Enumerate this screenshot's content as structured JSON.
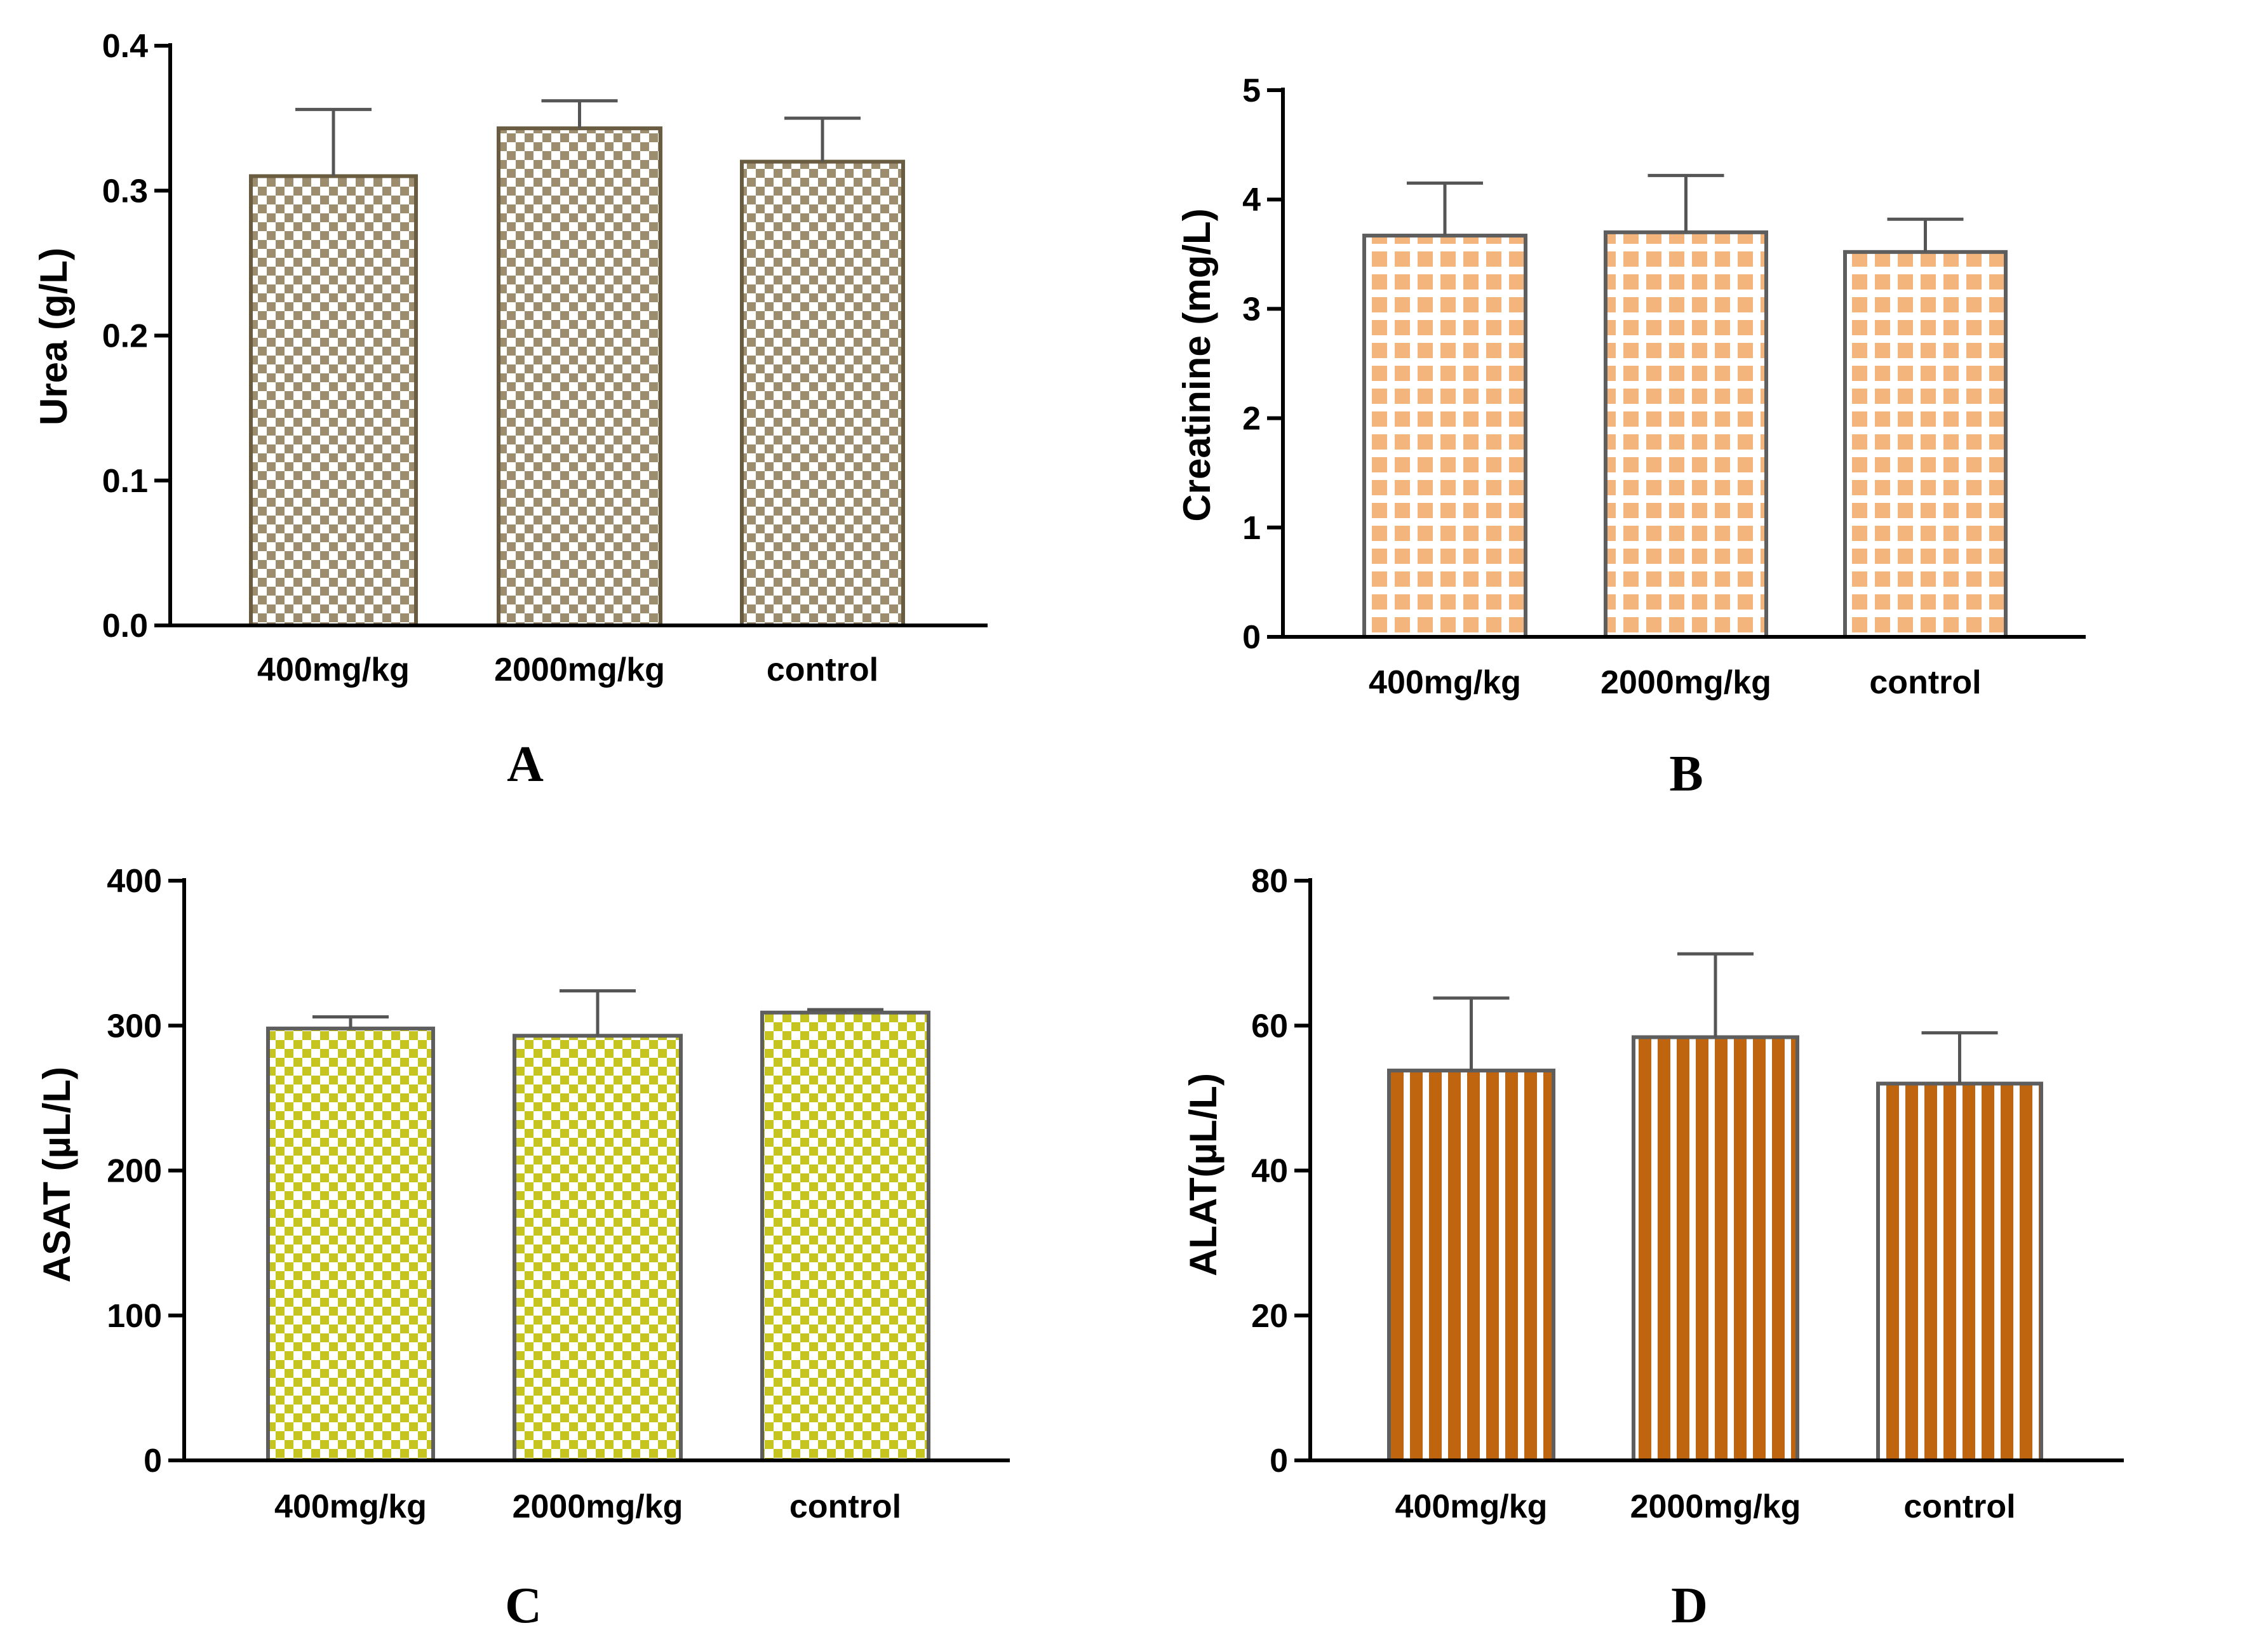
{
  "chart_data": [
    {
      "type": "bar",
      "panel": "A",
      "categories": [
        "400mg/kg",
        "2000mg/kg",
        "control"
      ],
      "values": [
        0.31,
        0.343,
        0.32
      ],
      "errors": [
        0.046,
        0.019,
        0.03
      ],
      "ylabel": "Urea (g/L)",
      "xlabel": "",
      "ylim": [
        0,
        0.4
      ],
      "yticks": [
        "0.0",
        "0.1",
        "0.2",
        "0.3",
        "0.4"
      ],
      "fill_pattern": "checker",
      "colors": {
        "fill": "#9c8d6e",
        "background": "#ffffff",
        "edge": "#6a5c40"
      }
    },
    {
      "type": "bar",
      "panel": "B",
      "categories": [
        "400mg/kg",
        "2000mg/kg",
        "control"
      ],
      "values": [
        3.67,
        3.7,
        3.52
      ],
      "errors": [
        0.48,
        0.52,
        0.3
      ],
      "ylabel": "Creatinine (mg/L)",
      "xlabel": "",
      "ylim": [
        0,
        5
      ],
      "yticks": [
        "0",
        "1",
        "2",
        "3",
        "4",
        "5"
      ],
      "fill_pattern": "grid",
      "colors": {
        "fill": "#f3b57c",
        "background": "#ffffff",
        "edge": "#5e5e5e"
      }
    },
    {
      "type": "bar",
      "panel": "C",
      "categories": [
        "400mg/kg",
        "2000mg/kg",
        "control"
      ],
      "values": [
        298,
        293,
        309
      ],
      "errors": [
        8,
        31,
        2
      ],
      "ylabel": "ASAT (µL/L)",
      "xlabel": "",
      "ylim": [
        0,
        400
      ],
      "yticks": [
        "0",
        "100",
        "200",
        "300",
        "400"
      ],
      "fill_pattern": "checker",
      "colors": {
        "fill": "#c6c41e",
        "background": "#ffffff",
        "edge": "#5e5e5e"
      }
    },
    {
      "type": "bar",
      "panel": "D",
      "categories": [
        "400mg/kg",
        "2000mg/kg",
        "control"
      ],
      "values": [
        53.8,
        58.4,
        52
      ],
      "errors": [
        10,
        11.5,
        7
      ],
      "ylabel": "ALAT(µL/L)",
      "xlabel": "",
      "ylim": [
        0,
        80
      ],
      "yticks": [
        "0",
        "20",
        "40",
        "60",
        "80"
      ],
      "fill_pattern": "stripes",
      "colors": {
        "fill": "#c0650f",
        "background": "#ffffff",
        "edge": "#5e5e5e"
      }
    }
  ]
}
